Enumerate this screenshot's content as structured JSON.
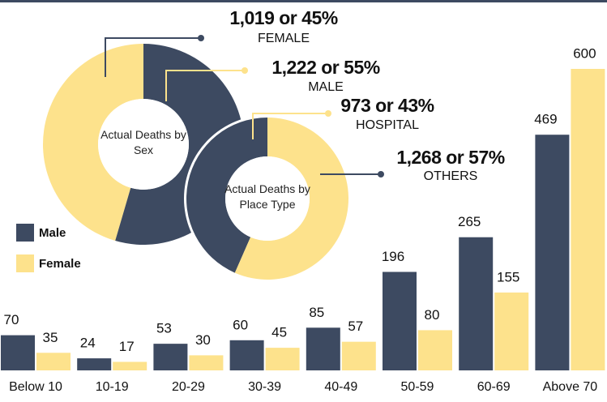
{
  "chart_data": [
    {
      "type": "bar",
      "categories": [
        "Below 10",
        "10-19",
        "20-29",
        "30-39",
        "40-49",
        "50-59",
        "60-69",
        "Above 70"
      ],
      "series": [
        {
          "name": "Male",
          "color": "#3d4a61",
          "values": [
            70,
            24,
            53,
            60,
            85,
            196,
            265,
            469
          ]
        },
        {
          "name": "Female",
          "color": "#fde28c",
          "values": [
            35,
            17,
            30,
            45,
            57,
            80,
            155,
            600
          ]
        }
      ]
    },
    {
      "type": "donut",
      "title": "Actual Deaths by Sex",
      "categories": [
        "FEMALE",
        "MALE"
      ],
      "values": [
        1019,
        1222
      ],
      "value_labels": [
        "1,019 or 45%",
        "1,222 or 55%"
      ],
      "colors": [
        "#fde28c",
        "#3d4a61"
      ]
    },
    {
      "type": "donut",
      "title": "Actual Deaths by Place Type",
      "categories": [
        "HOSPITAL",
        "OTHERS"
      ],
      "values": [
        973,
        1268
      ],
      "value_labels": [
        "973 or 43%",
        "1,268 or 57%"
      ],
      "colors": [
        "#3d4a61",
        "#fde28c"
      ]
    }
  ]
}
